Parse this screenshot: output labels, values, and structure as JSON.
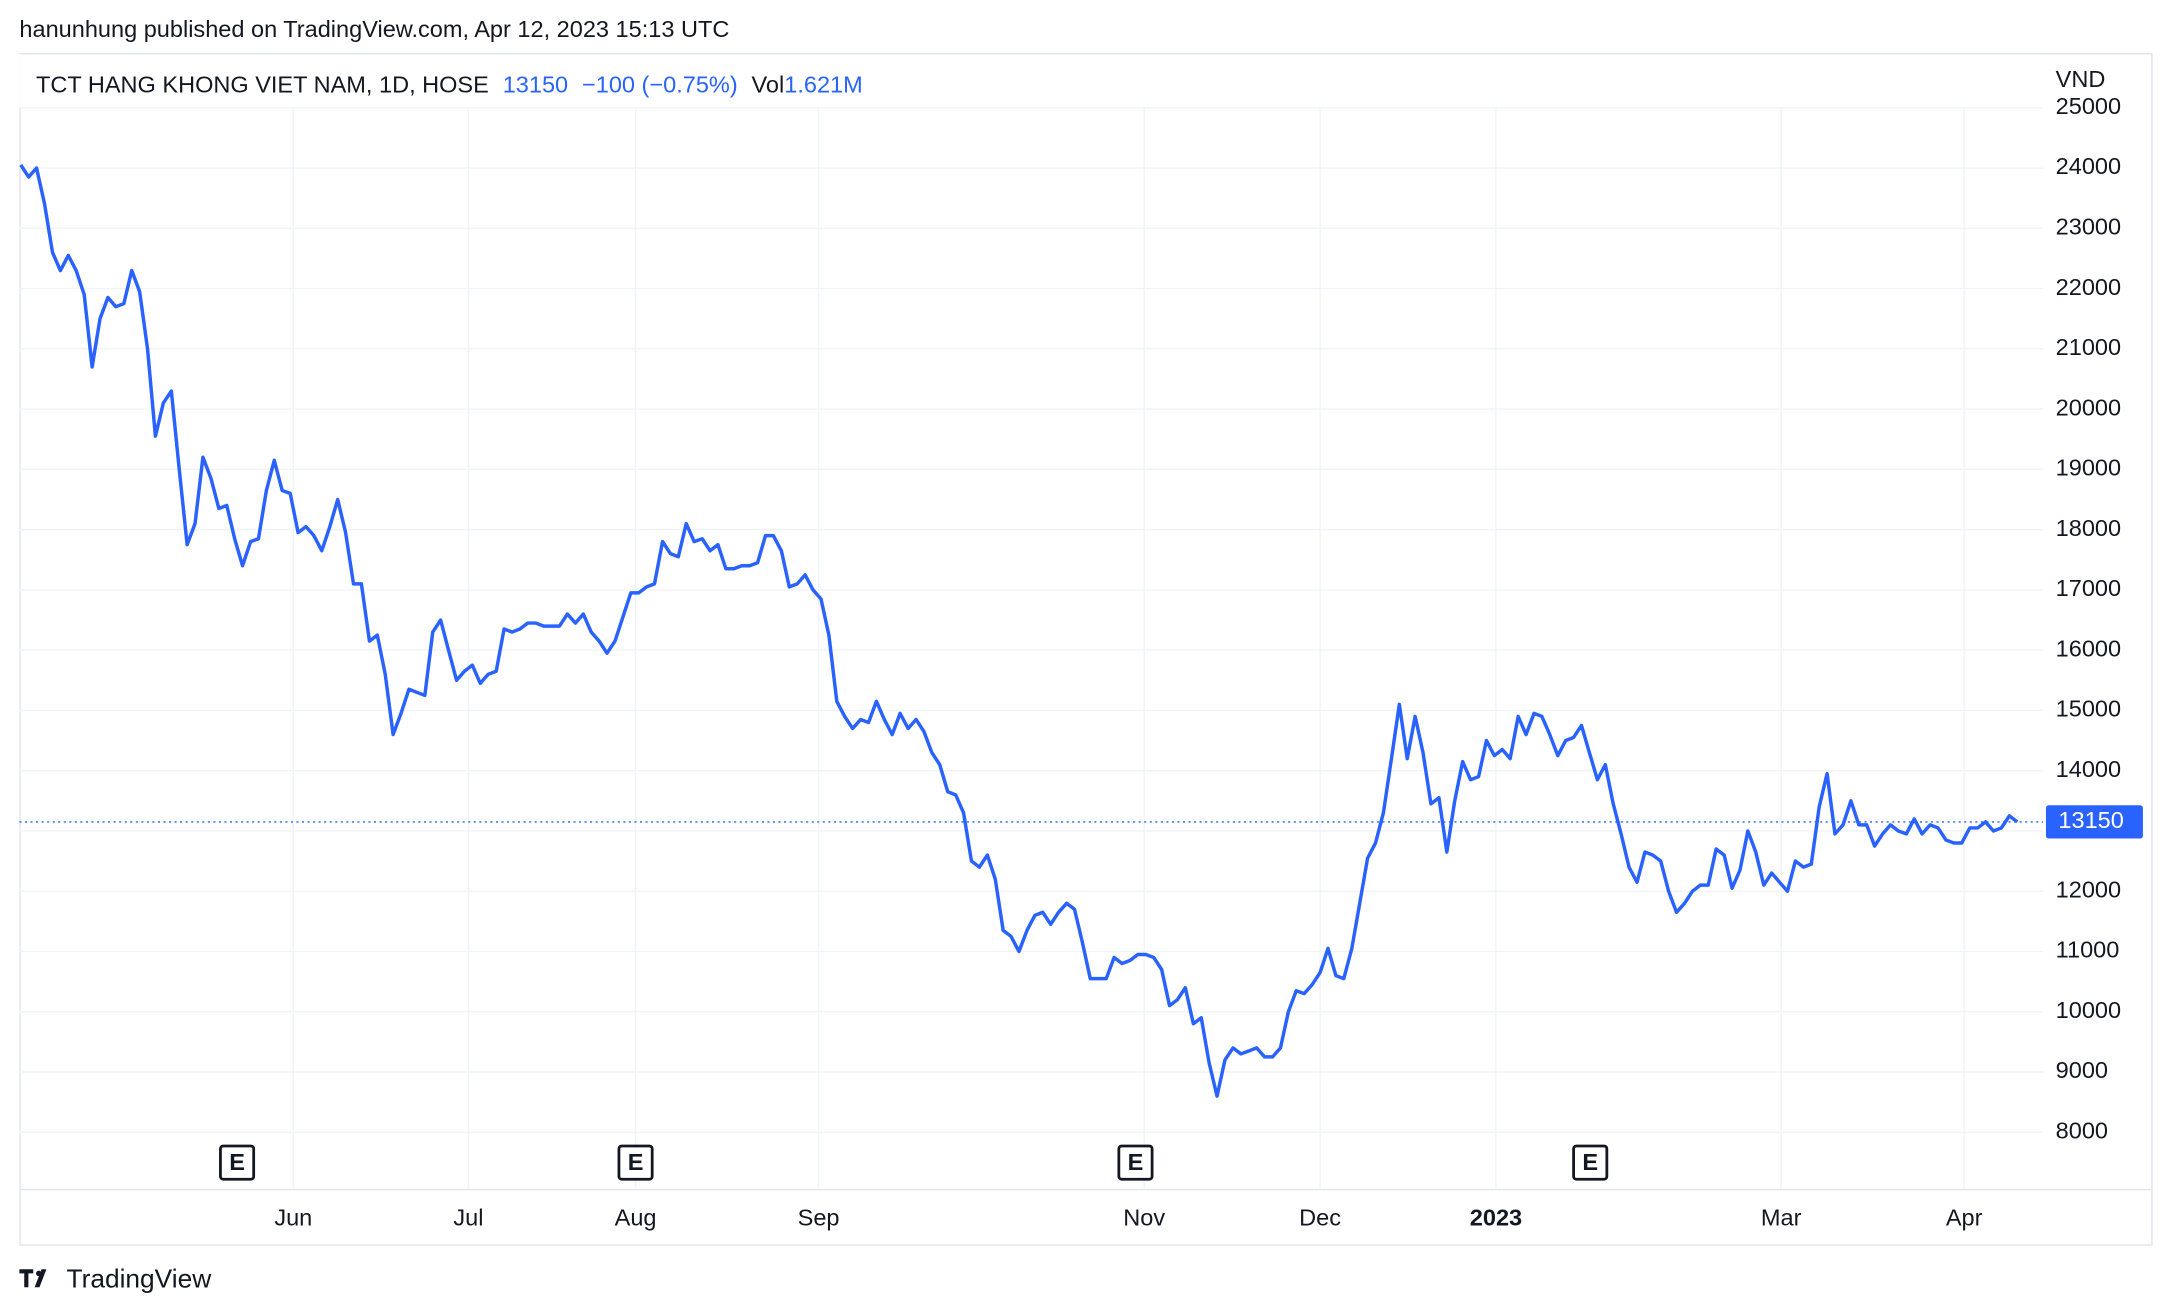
{
  "header": {
    "publisher": "hanunhung published on TradingView.com, Apr 12, 2023 15:13 UTC",
    "footer": "TradingView"
  },
  "chart_data": {
    "type": "line",
    "title": "TCT HANG KHONG VIET NAM, 1D, HOSE",
    "last": "13150",
    "change": "−100 (−0.75%)",
    "volume_label": "Vol",
    "volume": "1.621M",
    "currency": "VND",
    "color": "#2962ff",
    "grid": true,
    "last_price": 13150,
    "values": [
      24050,
      23850,
      24000,
      23400,
      22600,
      22300,
      22550,
      22300,
      21900,
      20700,
      21500,
      21850,
      21700,
      21750,
      22300,
      21950,
      21000,
      19550,
      20100,
      20300,
      19000,
      17750,
      18100,
      19200,
      18850,
      18350,
      18400,
      17850,
      17400,
      17800,
      17850,
      18650,
      19150,
      18650,
      18600,
      17950,
      18050,
      17900,
      17650,
      18050,
      18500,
      17950,
      17100,
      17100,
      16150,
      16250,
      15600,
      14600,
      14950,
      15350,
      15300,
      15250,
      16300,
      16500,
      16000,
      15500,
      15650,
      15750,
      15450,
      15600,
      15650,
      16350,
      16300,
      16350,
      16450,
      16450,
      16400,
      16400,
      16400,
      16600,
      16450,
      16600,
      16300,
      16150,
      15950,
      16150,
      16550,
      16950,
      16950,
      17050,
      17100,
      17800,
      17600,
      17550,
      18100,
      17800,
      17850,
      17650,
      17750,
      17350,
      17350,
      17400,
      17400,
      17450,
      17900,
      17900,
      17650,
      17050,
      17100,
      17250,
      17000,
      16850,
      16250,
      15150,
      14900,
      14700,
      14850,
      14800,
      15150,
      14850,
      14600,
      14950,
      14700,
      14850,
      14650,
      14300,
      14100,
      13650,
      13600,
      13300,
      12500,
      12400,
      12600,
      12200,
      11350,
      11250,
      11000,
      11350,
      11600,
      11650,
      11450,
      11650,
      11800,
      11700,
      11150,
      10550,
      10550,
      10550,
      10900,
      10800,
      10850,
      10950,
      10950,
      10900,
      10700,
      10100,
      10200,
      10400,
      9800,
      9900,
      9150,
      8600,
      9200,
      9400,
      9300,
      9350,
      9400,
      9250,
      9250,
      9400,
      10000,
      10350,
      10300,
      10450,
      10650,
      11050,
      10600,
      10550,
      11050,
      11800,
      12550,
      12800,
      13300,
      14200,
      15100,
      14200,
      14900,
      14300,
      13450,
      13550,
      12650,
      13500,
      14150,
      13850,
      13900,
      14500,
      14250,
      14350,
      14200,
      14900,
      14600,
      14950,
      14900,
      14600,
      14250,
      14500,
      14550,
      14750,
      14300,
      13850,
      14100,
      13450,
      12950,
      12400,
      12150,
      12650,
      12600,
      12500,
      12000,
      11650,
      11800,
      12000,
      12100,
      12100,
      12700,
      12600,
      12050,
      12350,
      13000,
      12650,
      12100,
      12300,
      12150,
      12000,
      12500,
      12400,
      12450,
      13400,
      13950,
      12950,
      13100,
      13500,
      13100,
      13100,
      12750,
      12950,
      13100,
      13000,
      12950,
      13200,
      12950,
      13100,
      13050,
      12850,
      12800,
      12800,
      13050,
      13050,
      13150,
      13000,
      13050,
      13250,
      13150
    ],
    "xlim": [
      0,
      253
    ],
    "xticks": [
      {
        "value": 34.4,
        "label": "Jun"
      },
      {
        "value": 56.5,
        "label": "Jul"
      },
      {
        "value": 77.6,
        "label": "Aug"
      },
      {
        "value": 100.7,
        "label": "Sep"
      },
      {
        "value": 141.8,
        "label": "Nov"
      },
      {
        "value": 164,
        "label": "Dec"
      },
      {
        "value": 186.2,
        "label": "2023"
      },
      {
        "value": 222.2,
        "label": "Mar"
      },
      {
        "value": 245.3,
        "label": "Apr"
      }
    ],
    "ylim": [
      7060,
      25000
    ],
    "yticks": [
      8000,
      9000,
      10000,
      11000,
      12000,
      13000,
      14000,
      15000,
      16000,
      17000,
      18000,
      19000,
      20000,
      21000,
      22000,
      23000,
      24000,
      25000
    ],
    "events": [
      {
        "x": 27.3,
        "label": "E"
      },
      {
        "x": 77.6,
        "label": "E"
      },
      {
        "x": 140.7,
        "label": "E"
      },
      {
        "x": 198.1,
        "label": "E"
      }
    ]
  }
}
